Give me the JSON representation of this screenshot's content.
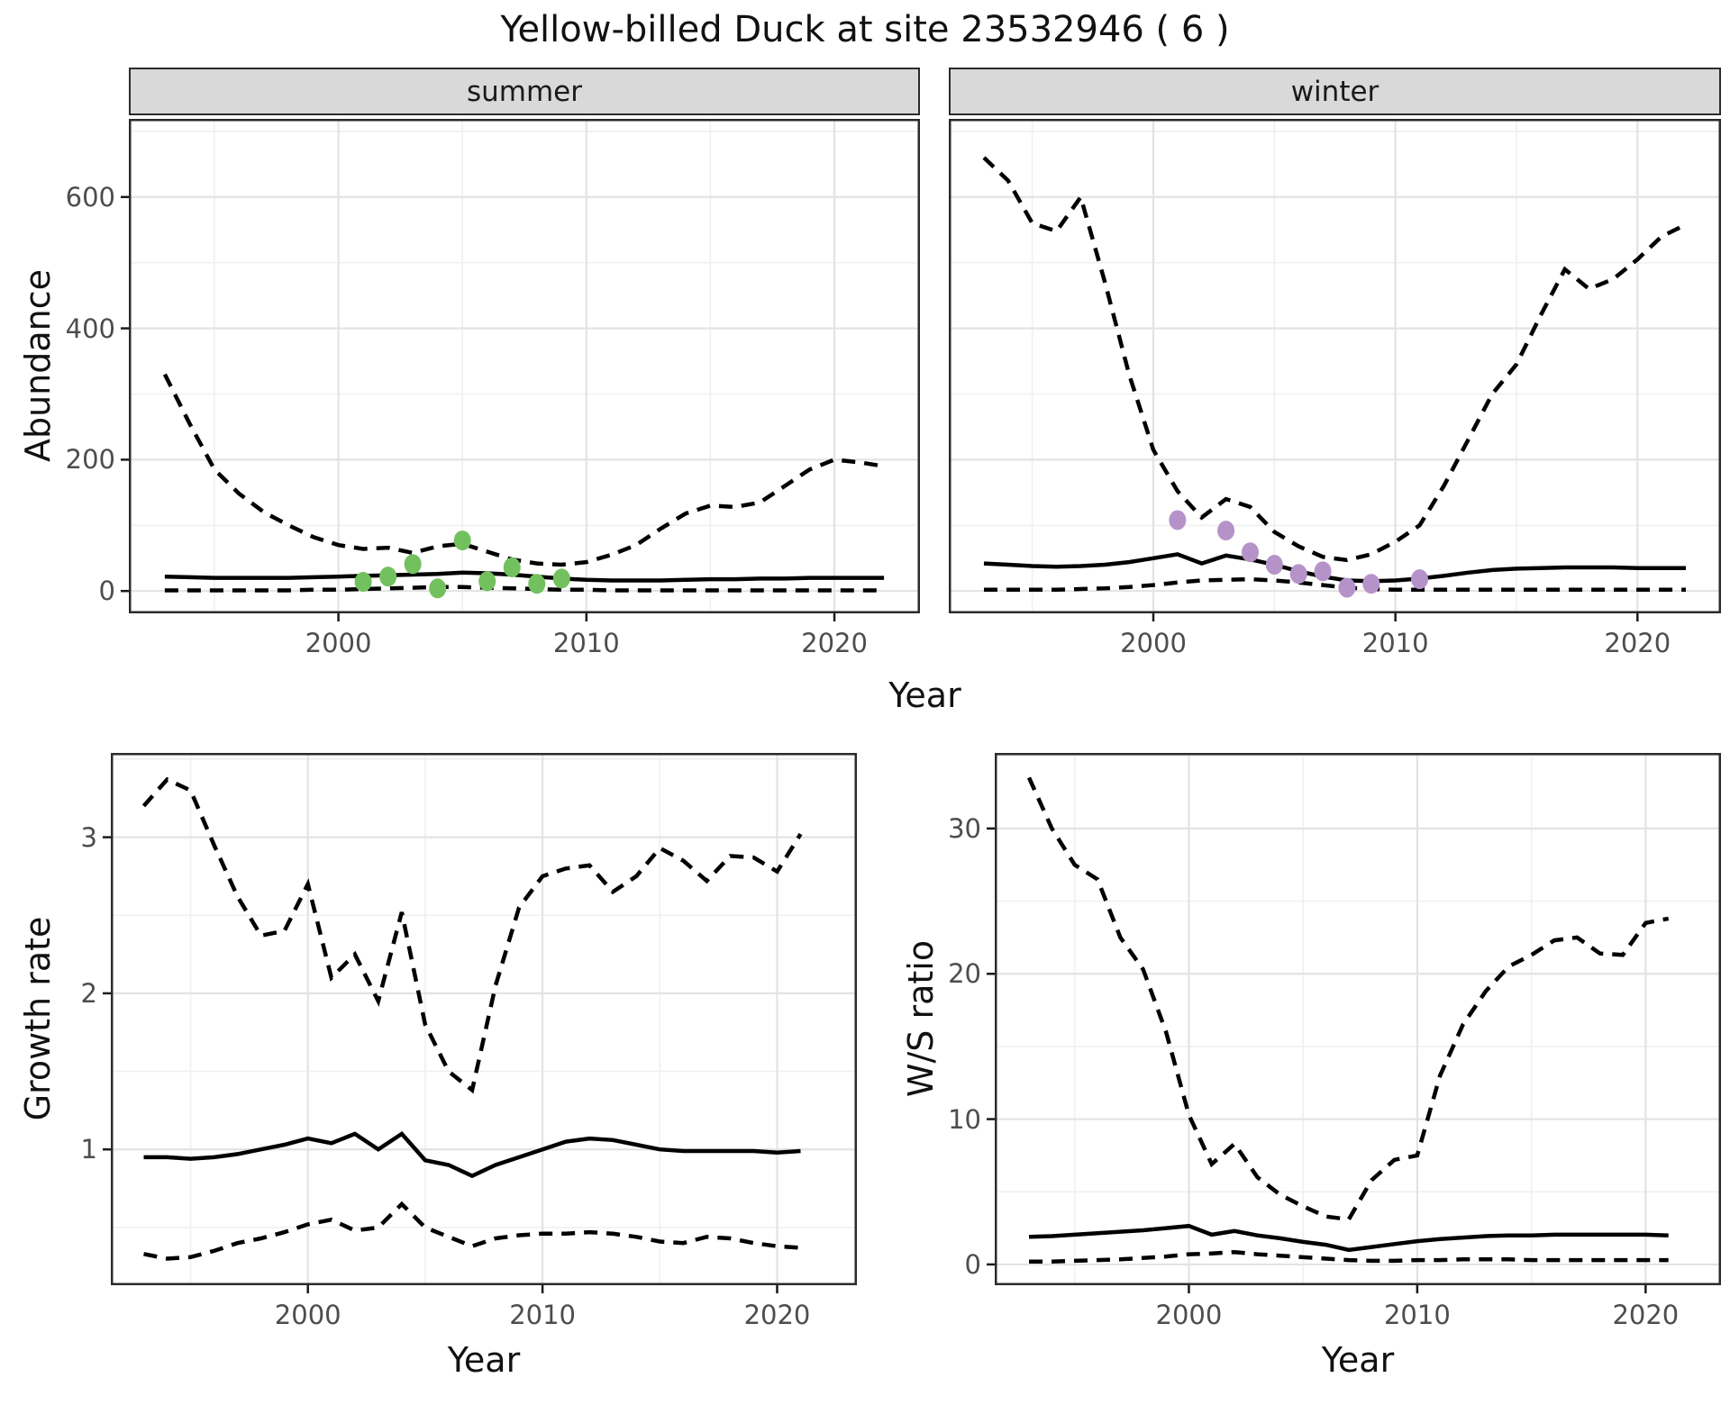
{
  "title": "Yellow-billed Duck at site 23532946 ( 6 )",
  "facets": {
    "summer": "summer",
    "winter": "winter"
  },
  "axes": {
    "abundance_label": "Abundance",
    "growth_label": "Growth rate",
    "ws_label": "W/S ratio",
    "year_label": "Year"
  },
  "colors": {
    "summer_points": "#73c05f",
    "winter_points": "#b593c9",
    "line": "#000000",
    "grid_major": "#e3e3e3",
    "grid_minor": "#f0f0f0",
    "panel_border": "#2b2b2b",
    "strip_bg": "#d9d9d9",
    "tick_text": "#4d4d4d"
  },
  "chart_data": [
    {
      "id": "summer-abundance",
      "type": "line",
      "facet": "summer",
      "xlabel": "Year",
      "ylabel": "Abundance",
      "xlim": [
        1991.55,
        2023.45
      ],
      "ylim": [
        -34,
        719
      ],
      "x_ticks": [
        2000,
        2010,
        2020
      ],
      "x_tick_labels": [
        "2000",
        "2010",
        "2020"
      ],
      "x_minor": [
        1995,
        2005,
        2015
      ],
      "y_ticks": [
        0,
        200,
        400,
        600
      ],
      "y_tick_labels": [
        "0",
        "200",
        "400",
        "600"
      ],
      "y_minor": [
        100,
        300,
        500,
        700
      ],
      "show_y_axis": true,
      "x": [
        1993,
        1994,
        1995,
        1996,
        1997,
        1998,
        1999,
        2000,
        2001,
        2002,
        2003,
        2004,
        2005,
        2006,
        2007,
        2008,
        2009,
        2010,
        2011,
        2012,
        2013,
        2014,
        2015,
        2016,
        2017,
        2018,
        2019,
        2020,
        2021,
        2022
      ],
      "series": [
        {
          "name": "upper-ci",
          "style": "dashed",
          "values": [
            330,
            255,
            185,
            148,
            120,
            100,
            82,
            70,
            64,
            66,
            58,
            68,
            72,
            60,
            48,
            42,
            40,
            44,
            55,
            70,
            95,
            118,
            130,
            128,
            135,
            160,
            185,
            200,
            196,
            190
          ]
        },
        {
          "name": "lower-ci",
          "style": "dashed",
          "values": [
            1,
            1,
            1,
            1,
            1,
            1,
            2,
            2,
            3,
            4,
            5,
            6,
            6,
            5,
            4,
            3,
            2,
            2,
            1,
            1,
            1,
            1,
            1,
            1,
            1,
            1,
            1,
            1,
            1,
            1
          ]
        },
        {
          "name": "median",
          "style": "solid",
          "values": [
            22,
            21,
            20,
            20,
            20,
            20,
            21,
            22,
            23,
            24,
            25,
            26,
            28,
            27,
            25,
            22,
            19,
            17,
            16,
            16,
            16,
            17,
            18,
            18,
            19,
            19,
            20,
            20,
            20,
            20
          ]
        }
      ],
      "points": {
        "name": "observed-counts",
        "color": "#73c05f",
        "x": [
          2001,
          2002,
          2003,
          2004,
          2005,
          2006,
          2007,
          2008,
          2009
        ],
        "y": [
          14,
          22,
          41,
          4,
          77,
          15,
          36,
          11,
          19
        ]
      }
    },
    {
      "id": "winter-abundance",
      "type": "line",
      "facet": "winter",
      "xlabel": "Year",
      "ylabel": "Abundance",
      "xlim": [
        1991.55,
        2023.45
      ],
      "ylim": [
        -34,
        719
      ],
      "x_ticks": [
        2000,
        2010,
        2020
      ],
      "x_tick_labels": [
        "2000",
        "2010",
        "2020"
      ],
      "x_minor": [
        1995,
        2005,
        2015
      ],
      "y_ticks": [
        0,
        200,
        400,
        600
      ],
      "y_tick_labels": [
        "0",
        "200",
        "400",
        "600"
      ],
      "y_minor": [
        100,
        300,
        500,
        700
      ],
      "show_y_axis": false,
      "x": [
        1993,
        1994,
        1995,
        1996,
        1997,
        1998,
        1999,
        2000,
        2001,
        2002,
        2003,
        2004,
        2005,
        2006,
        2007,
        2008,
        2009,
        2010,
        2011,
        2012,
        2013,
        2014,
        2015,
        2016,
        2017,
        2018,
        2019,
        2020,
        2021,
        2022
      ],
      "series": [
        {
          "name": "upper-ci",
          "style": "dashed",
          "values": [
            660,
            625,
            560,
            548,
            600,
            470,
            330,
            215,
            152,
            112,
            140,
            128,
            90,
            68,
            52,
            47,
            56,
            75,
            100,
            160,
            230,
            300,
            345,
            420,
            490,
            460,
            475,
            505,
            540,
            558
          ]
        },
        {
          "name": "lower-ci",
          "style": "dashed",
          "values": [
            2,
            2,
            2,
            2,
            3,
            4,
            6,
            9,
            13,
            16,
            17,
            18,
            16,
            13,
            9,
            5,
            3,
            2,
            2,
            2,
            2,
            2,
            2,
            2,
            2,
            2,
            2,
            2,
            2,
            2
          ]
        },
        {
          "name": "median",
          "style": "solid",
          "values": [
            42,
            40,
            38,
            37,
            38,
            40,
            44,
            50,
            56,
            42,
            54,
            48,
            40,
            30,
            22,
            16,
            15,
            16,
            19,
            23,
            28,
            32,
            34,
            35,
            36,
            36,
            36,
            35,
            35,
            35
          ]
        }
      ],
      "points": {
        "name": "observed-counts",
        "color": "#b593c9",
        "x": [
          2001,
          2003,
          2004,
          2005,
          2006,
          2007,
          2008,
          2009,
          2011
        ],
        "y": [
          108,
          92,
          59,
          40,
          26,
          30,
          5,
          11,
          18
        ]
      }
    },
    {
      "id": "growth-rate",
      "type": "line",
      "xlabel": "Year",
      "ylabel": "Growth rate",
      "xlim": [
        1991.6,
        2023.4
      ],
      "ylim": [
        0.13,
        3.54
      ],
      "x_ticks": [
        2000,
        2010,
        2020
      ],
      "x_tick_labels": [
        "2000",
        "2010",
        "2020"
      ],
      "x_minor": [
        1995,
        2005,
        2015
      ],
      "y_ticks": [
        1,
        2,
        3
      ],
      "y_tick_labels": [
        "1",
        "2",
        "3"
      ],
      "y_minor": [
        0.5,
        1.5,
        2.5,
        3.5
      ],
      "show_y_axis": true,
      "x": [
        1993,
        1994,
        1995,
        1996,
        1997,
        1998,
        1999,
        2000,
        2001,
        2002,
        2003,
        2004,
        2005,
        2006,
        2007,
        2008,
        2009,
        2010,
        2011,
        2012,
        2013,
        2014,
        2015,
        2016,
        2017,
        2018,
        2019,
        2020,
        2021
      ],
      "series": [
        {
          "name": "upper-ci",
          "style": "dashed",
          "values": [
            3.2,
            3.37,
            3.3,
            2.95,
            2.62,
            2.37,
            2.4,
            2.7,
            2.1,
            2.25,
            1.95,
            2.52,
            1.8,
            1.5,
            1.38,
            2.05,
            2.55,
            2.75,
            2.8,
            2.82,
            2.65,
            2.75,
            2.93,
            2.85,
            2.72,
            2.88,
            2.87,
            2.78,
            3.02
          ]
        },
        {
          "name": "lower-ci",
          "style": "dashed",
          "values": [
            0.33,
            0.3,
            0.31,
            0.35,
            0.4,
            0.43,
            0.47,
            0.52,
            0.55,
            0.48,
            0.5,
            0.65,
            0.5,
            0.44,
            0.38,
            0.43,
            0.45,
            0.46,
            0.46,
            0.47,
            0.46,
            0.44,
            0.41,
            0.4,
            0.44,
            0.43,
            0.4,
            0.38,
            0.37
          ]
        },
        {
          "name": "median",
          "style": "solid",
          "values": [
            0.95,
            0.95,
            0.94,
            0.95,
            0.97,
            1.0,
            1.03,
            1.07,
            1.04,
            1.1,
            1.0,
            1.1,
            0.93,
            0.9,
            0.83,
            0.9,
            0.95,
            1.0,
            1.05,
            1.07,
            1.06,
            1.03,
            1.0,
            0.99,
            0.99,
            0.99,
            0.99,
            0.98,
            0.99
          ]
        }
      ],
      "points": null
    },
    {
      "id": "ws-ratio",
      "type": "line",
      "xlabel": "Year",
      "ylabel": "W/S ratio",
      "xlim": [
        1991.5,
        2023.3
      ],
      "ylim": [
        -1.43,
        35.2
      ],
      "x_ticks": [
        2000,
        2010,
        2020
      ],
      "x_tick_labels": [
        "2000",
        "2010",
        "2020"
      ],
      "x_minor": [
        1995,
        2005,
        2015
      ],
      "y_ticks": [
        0,
        10,
        20,
        30
      ],
      "y_tick_labels": [
        "0",
        "10",
        "20",
        "30"
      ],
      "y_minor": [
        5,
        15,
        25,
        35
      ],
      "show_y_axis": true,
      "x": [
        1993,
        1994,
        1995,
        1996,
        1997,
        1998,
        1999,
        2000,
        2001,
        2002,
        2003,
        2004,
        2005,
        2006,
        2007,
        2008,
        2009,
        2010,
        2011,
        2012,
        2013,
        2014,
        2015,
        2016,
        2017,
        2018,
        2019,
        2020,
        2021
      ],
      "series": [
        {
          "name": "upper-ci",
          "style": "dashed",
          "values": [
            33.5,
            30.0,
            27.5,
            26.5,
            22.5,
            20.3,
            16.0,
            10.3,
            6.9,
            8.3,
            6.0,
            4.8,
            4.0,
            3.3,
            3.1,
            5.8,
            7.2,
            7.5,
            13.0,
            16.5,
            18.8,
            20.5,
            21.3,
            22.3,
            22.5,
            21.4,
            21.3,
            23.5,
            23.8
          ]
        },
        {
          "name": "lower-ci",
          "style": "dashed",
          "values": [
            0.2,
            0.2,
            0.25,
            0.3,
            0.35,
            0.45,
            0.55,
            0.7,
            0.75,
            0.85,
            0.7,
            0.6,
            0.5,
            0.4,
            0.3,
            0.25,
            0.25,
            0.3,
            0.3,
            0.35,
            0.35,
            0.35,
            0.3,
            0.3,
            0.3,
            0.3,
            0.3,
            0.3,
            0.3
          ]
        },
        {
          "name": "median",
          "style": "solid",
          "values": [
            1.9,
            1.95,
            2.05,
            2.15,
            2.25,
            2.35,
            2.5,
            2.65,
            2.05,
            2.3,
            2.0,
            1.8,
            1.55,
            1.35,
            1.0,
            1.2,
            1.4,
            1.6,
            1.75,
            1.85,
            1.95,
            2.0,
            2.0,
            2.05,
            2.05,
            2.05,
            2.05,
            2.05,
            2.0
          ]
        }
      ],
      "points": null
    }
  ]
}
